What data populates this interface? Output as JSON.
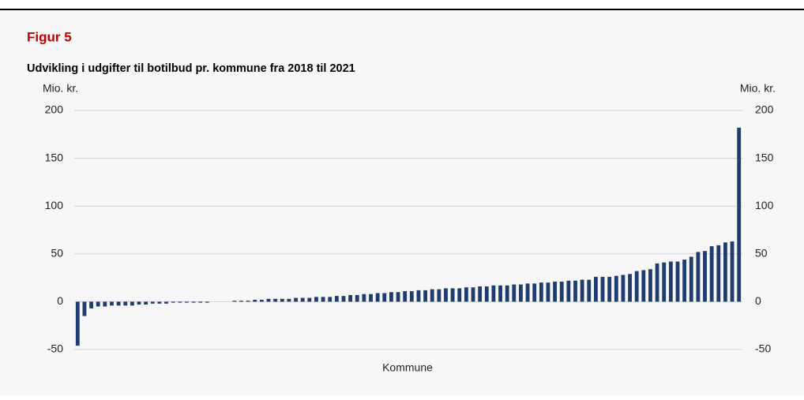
{
  "chart_data": {
    "type": "bar",
    "figure_label": "Figur 5",
    "title": "Udvikling i udgifter til botilbud pr. kommune fra 2018 til 2021",
    "y_label": "Mio. kr.",
    "y2_label": "Mio. kr.",
    "x_label": "Kommune",
    "color": "#1f3c6e",
    "values": [
      -46,
      -15,
      -7,
      -5,
      -5,
      -4,
      -4,
      -4,
      -4,
      -3,
      -3,
      -2,
      -2,
      -2,
      -1,
      -1,
      -1,
      -1,
      -1,
      -1,
      0,
      0,
      0,
      1,
      1,
      1,
      2,
      2,
      3,
      3,
      3,
      3,
      4,
      4,
      4,
      5,
      5,
      5,
      6,
      6,
      7,
      7,
      8,
      8,
      9,
      9,
      10,
      10,
      11,
      11,
      12,
      12,
      13,
      13,
      14,
      14,
      14,
      15,
      15,
      16,
      16,
      17,
      17,
      17,
      18,
      18,
      19,
      19,
      20,
      20,
      21,
      21,
      22,
      22,
      23,
      23,
      26,
      26,
      26,
      27,
      28,
      29,
      32,
      33,
      34,
      40,
      41,
      42,
      42,
      44,
      47,
      52,
      53,
      58,
      59,
      62,
      63,
      182
    ],
    "ylim": [
      -50,
      200
    ],
    "yticks": [
      -50,
      0,
      50,
      100,
      150,
      200
    ],
    "y2lim": [
      -50,
      200
    ],
    "y2ticks": [
      -50,
      0,
      50,
      100,
      150,
      200
    ],
    "grid": true
  }
}
